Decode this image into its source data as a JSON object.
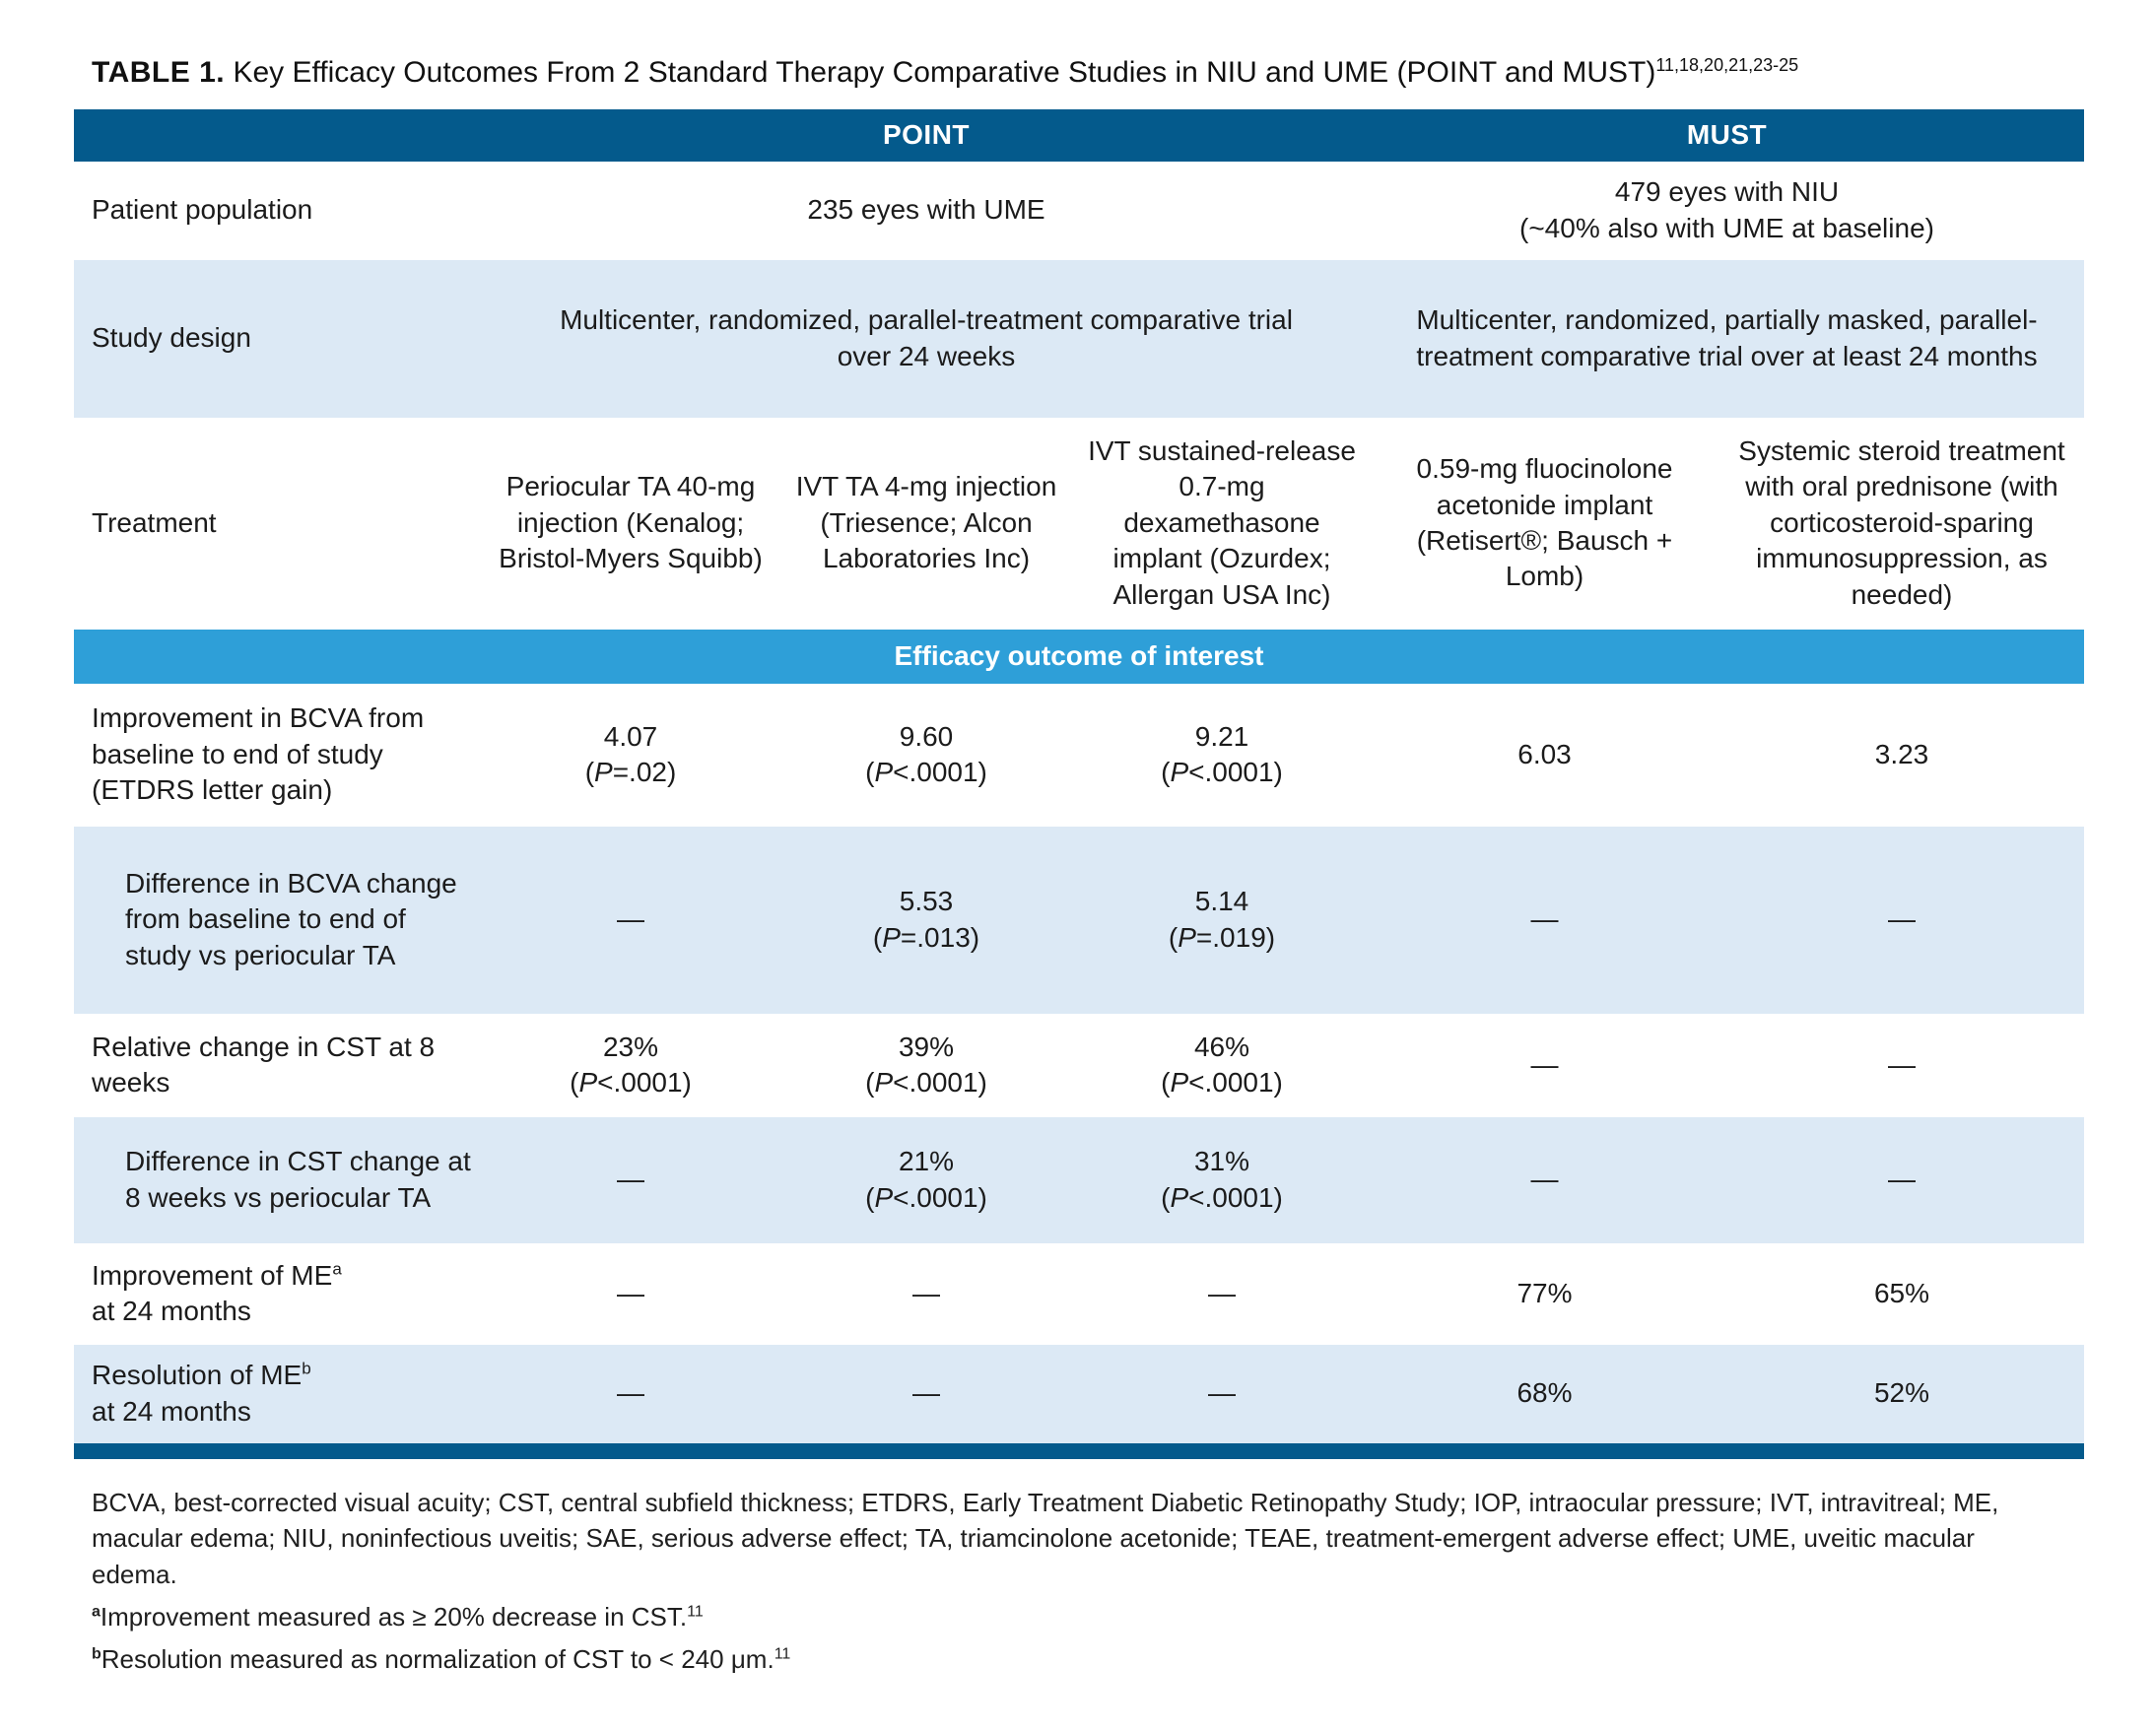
{
  "title": {
    "prefix": "TABLE 1.",
    "text": " Key Efficacy Outcomes From 2 Standard Therapy Comparative Studies in NIU and UME (POINT and MUST)",
    "refs": "11,18,20,21,23-25"
  },
  "colors": {
    "dark_blue": "#045A8C",
    "bright_blue": "#2E9FD8",
    "light_row_blue": "#DCE9F5"
  },
  "header": {
    "point": "POINT",
    "must": "MUST"
  },
  "section_bar": {
    "label": "Efficacy outcome of interest"
  },
  "rows": {
    "patient": {
      "label": "Patient population",
      "point": "235 eyes with UME",
      "must_line1": "479 eyes with NIU",
      "must_line2": "(~40% also with UME at baseline)"
    },
    "design": {
      "label": "Study design",
      "point": "Multicenter, randomized, parallel-treatment comparative trial over 24 weeks",
      "must": "Multicenter, randomized, partially masked, parallel-treatment comparative trial over at least 24 months"
    },
    "treatment": {
      "label": "Treatment",
      "cells": [
        "Periocular TA 40-mg injection (Kenalog; Bristol-Myers Squibb)",
        "IVT TA 4-mg injection (Triesence; Alcon Laboratories Inc)",
        "IVT sustained-release 0.7-mg dexamethasone implant (Ozurdex; Allergan USA Inc)",
        "0.59-mg fluocinolone acetonide implant (Retisert®; Bausch + Lomb)",
        "Systemic steroid treatment with oral prednisone (with corticosteroid-sparing immunosuppression, as needed)"
      ]
    },
    "bcva": {
      "label": "Improvement in BCVA from baseline to end of study (ETDRS letter gain)",
      "cells": [
        {
          "v": "4.07",
          "p": "(P=.02)"
        },
        {
          "v": "9.60",
          "p": "(P<.0001)"
        },
        {
          "v": "9.21",
          "p": "(P<.0001)"
        },
        {
          "v": "6.03"
        },
        {
          "v": "3.23"
        }
      ]
    },
    "diff_bcva": {
      "label": "Difference in BCVA change from baseline to end of study vs periocular TA",
      "cells": [
        {
          "v": "—"
        },
        {
          "v": "5.53",
          "p": "(P=.013)"
        },
        {
          "v": "5.14",
          "p": "(P=.019)"
        },
        {
          "v": "—"
        },
        {
          "v": "—"
        }
      ]
    },
    "cst": {
      "label": "Relative change in CST at 8 weeks",
      "cells": [
        {
          "v": "23%",
          "p": "(P<.0001)"
        },
        {
          "v": "39%",
          "p": "(P<.0001)"
        },
        {
          "v": "46%",
          "p": "(P<.0001)"
        },
        {
          "v": "—"
        },
        {
          "v": "—"
        }
      ]
    },
    "diff_cst": {
      "label": "Difference in CST change at 8 weeks vs periocular TA",
      "cells": [
        {
          "v": "—"
        },
        {
          "v": "21%",
          "p": "(P<.0001)"
        },
        {
          "v": "31%",
          "p": "(P<.0001)"
        },
        {
          "v": "—"
        },
        {
          "v": "—"
        }
      ]
    },
    "improve_me": {
      "label": "Improvement of ME",
      "label_sup": "a",
      "label2": "at 24 months",
      "cells": [
        {
          "v": "—"
        },
        {
          "v": "—"
        },
        {
          "v": "—"
        },
        {
          "v": "77%"
        },
        {
          "v": "65%"
        }
      ]
    },
    "resolve_me": {
      "label": "Resolution of ME",
      "label_sup": "b",
      "label2": "at 24 months",
      "cells": [
        {
          "v": "—"
        },
        {
          "v": "—"
        },
        {
          "v": "—"
        },
        {
          "v": "68%"
        },
        {
          "v": "52%"
        }
      ]
    }
  },
  "footnotes": {
    "abbreviations": "BCVA, best-corrected visual acuity; CST, central subfield thickness; ETDRS, Early Treatment Diabetic Retinopathy Study; IOP, intraocular pressure; IVT, intravitreal; ME, macular edema; NIU, noninfectious uveitis; SAE, serious adverse effect; TA, triamcinolone acetonide; TEAE, treatment-emergent adverse effect; UME, uveitic macular edema.",
    "a_sup": "a",
    "a_text": "Improvement measured as ≥ 20% decrease in CST.",
    "a_ref": "11",
    "b_sup": "b",
    "b_text": "Resolution measured as normalization of CST to < 240 μm.",
    "b_ref": "11"
  }
}
